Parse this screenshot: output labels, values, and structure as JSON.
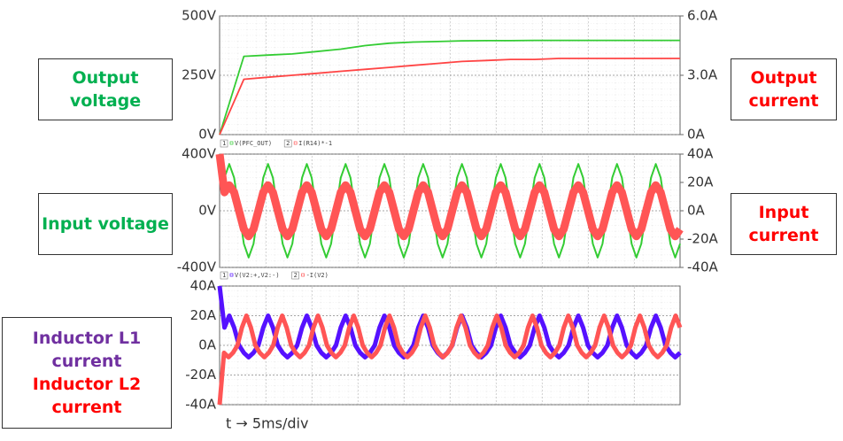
{
  "chart_data": [
    {
      "type": "line",
      "ylim": [
        0,
        500
      ],
      "yticks": [
        {
          "value": 0,
          "label": "0V"
        },
        {
          "value": 250,
          "label": "250V"
        },
        {
          "value": 500,
          "label": "500V"
        }
      ],
      "y2lim": [
        0,
        6
      ],
      "y2ticks": [
        {
          "value": 0,
          "label": "0A"
        },
        {
          "value": 3,
          "label": "3.0A"
        },
        {
          "value": 6,
          "label": "6.0A"
        }
      ],
      "grid": true,
      "series": [
        {
          "name": "Output voltage",
          "color": "#33cc33",
          "label_color": "#00b050",
          "values": [
            0,
            330,
            335,
            340,
            350,
            360,
            375,
            385,
            390,
            392,
            395,
            396,
            396,
            397,
            397,
            397,
            397,
            397,
            397,
            397
          ]
        },
        {
          "name": "Output current",
          "color": "#ff4444",
          "label_color": "#ff0000",
          "axis": "y2",
          "values": [
            0,
            2.8,
            2.9,
            3.0,
            3.1,
            3.2,
            3.3,
            3.4,
            3.5,
            3.6,
            3.7,
            3.75,
            3.8,
            3.8,
            3.85,
            3.85,
            3.85,
            3.85,
            3.85,
            3.85
          ]
        }
      ]
    },
    {
      "type": "line",
      "trace_ids": [
        "1",
        "2"
      ],
      "trace_labels": [
        "V(PFC_OUT)",
        "I(R14)*-1"
      ],
      "ylim": [
        -400,
        400
      ],
      "yticks": [
        {
          "value": -400,
          "label": "-400V"
        },
        {
          "value": 0,
          "label": "0V"
        },
        {
          "value": 400,
          "label": "400V"
        }
      ],
      "y2lim": [
        -40,
        40
      ],
      "y2ticks": [
        {
          "value": -40,
          "label": "-40A"
        },
        {
          "value": -20,
          "label": "-20A"
        },
        {
          "value": 0,
          "label": "0A"
        },
        {
          "value": 20,
          "label": "20A"
        },
        {
          "value": 40,
          "label": "40A"
        }
      ],
      "grid": true,
      "series": [
        {
          "name": "Input voltage",
          "color": "#33cc33",
          "label_color": "#00b050",
          "width": 2,
          "values": [
            400,
            233,
            330,
            233,
            0,
            -233,
            -330,
            -233,
            0,
            233,
            330,
            233,
            0,
            -233,
            -330,
            -233,
            0,
            233,
            330,
            233,
            0,
            -233,
            -330,
            -233,
            0,
            233,
            330,
            233,
            0,
            -233,
            -330,
            -233,
            0,
            233,
            330,
            233,
            0,
            -233,
            -330,
            -233,
            0,
            233,
            330,
            233,
            0,
            -233,
            -330,
            -233,
            0,
            233,
            330,
            233,
            0,
            -233,
            -330,
            -233,
            0,
            233,
            330,
            233,
            0,
            -233,
            -330,
            -233,
            0,
            233,
            330,
            233,
            0,
            -233,
            -330,
            -233,
            0,
            233,
            330,
            233,
            0,
            -233,
            -330,
            -233,
            0,
            233,
            330,
            233,
            0,
            -233,
            -330,
            -233,
            0,
            233,
            330,
            233,
            0,
            -233,
            -330,
            -233
          ]
        },
        {
          "name": "Input current",
          "color": "#ff5555",
          "label_color": "#ff0000",
          "axis": "y2",
          "width": 9,
          "values": [
            40,
            13,
            18,
            13,
            0,
            -13,
            -18,
            -13,
            0,
            13,
            18,
            13,
            0,
            -13,
            -18,
            -13,
            0,
            13,
            18,
            13,
            0,
            -13,
            -18,
            -13,
            0,
            13,
            18,
            13,
            0,
            -13,
            -18,
            -13,
            0,
            13,
            18,
            13,
            0,
            -13,
            -18,
            -13,
            0,
            13,
            18,
            13,
            0,
            -13,
            -18,
            -13,
            0,
            13,
            18,
            13,
            0,
            -13,
            -18,
            -13,
            0,
            13,
            18,
            13,
            0,
            -13,
            -18,
            -13,
            0,
            13,
            18,
            13,
            0,
            -13,
            -18,
            -13,
            0,
            13,
            18,
            13,
            0,
            -13,
            -18,
            -13,
            0,
            13,
            18,
            13,
            0,
            -13,
            -18,
            -13,
            0,
            13,
            18,
            13,
            0,
            -13,
            -18,
            -13
          ]
        }
      ]
    },
    {
      "type": "line",
      "trace_ids": [
        "1",
        "2"
      ],
      "trace_labels": [
        "V(V2:+,V2:-)",
        "-I(V2)"
      ],
      "ylim": [
        -40,
        40
      ],
      "yticks": [
        {
          "value": -40,
          "label": "-40A"
        },
        {
          "value": -20,
          "label": "-20A"
        },
        {
          "value": 0,
          "label": "0A"
        },
        {
          "value": 20,
          "label": "20A"
        },
        {
          "value": 40,
          "label": "40A"
        }
      ],
      "grid": true,
      "x_label": "t → 5ms/div",
      "series": [
        {
          "name": "Inductor L1 current",
          "color": "#5511ff",
          "label_color": "#7030a0",
          "width": 5,
          "values": [
            40,
            12,
            20,
            12,
            0,
            -5,
            -8,
            -5,
            0,
            12,
            20,
            12,
            0,
            -5,
            -8,
            -5,
            0,
            12,
            20,
            12,
            0,
            -5,
            -8,
            -5,
            0,
            12,
            20,
            12,
            0,
            -5,
            -8,
            -5,
            0,
            12,
            20,
            12,
            0,
            -5,
            -8,
            -5,
            0,
            12,
            20,
            12,
            0,
            -5,
            -8,
            -5,
            0,
            12,
            20,
            12,
            0,
            -5,
            -8,
            -5,
            0,
            12,
            20,
            12,
            0,
            -5,
            -8,
            -5,
            0,
            12,
            20,
            12,
            0,
            -5,
            -8,
            -5,
            0,
            12,
            20,
            12,
            0,
            -5,
            -8,
            -5,
            0,
            12,
            20,
            12,
            0,
            -5,
            -8,
            -5,
            0,
            12,
            20,
            12,
            0,
            -5,
            -8,
            -5
          ]
        },
        {
          "name": "Inductor L2 current",
          "color": "#ff5555",
          "label_color": "#ff0000",
          "width": 5,
          "values": [
            -40,
            -5,
            -8,
            -5,
            0,
            12,
            20,
            12,
            0,
            -5,
            -8,
            -5,
            0,
            12,
            20,
            12,
            0,
            -5,
            -8,
            -5,
            0,
            12,
            20,
            12,
            0,
            -5,
            -8,
            -5,
            0,
            12,
            20,
            12,
            0,
            -5,
            -8,
            -5,
            0,
            12,
            20,
            12,
            0,
            -5,
            -8,
            -5,
            0,
            12,
            20,
            12,
            0,
            -5,
            -8,
            -5,
            0,
            12,
            20,
            12,
            0,
            -5,
            -8,
            -5,
            0,
            12,
            20,
            12,
            0,
            -5,
            -8,
            -5,
            0,
            12,
            20,
            12,
            0,
            -5,
            -8,
            -5,
            0,
            12,
            20,
            12,
            0,
            -5,
            -8,
            -5,
            0,
            12,
            20,
            12,
            0,
            -5,
            -8,
            -5,
            0,
            12,
            20,
            12,
            0,
            -5,
            -8,
            -5,
            0,
            12,
            20,
            12
          ]
        }
      ]
    }
  ]
}
